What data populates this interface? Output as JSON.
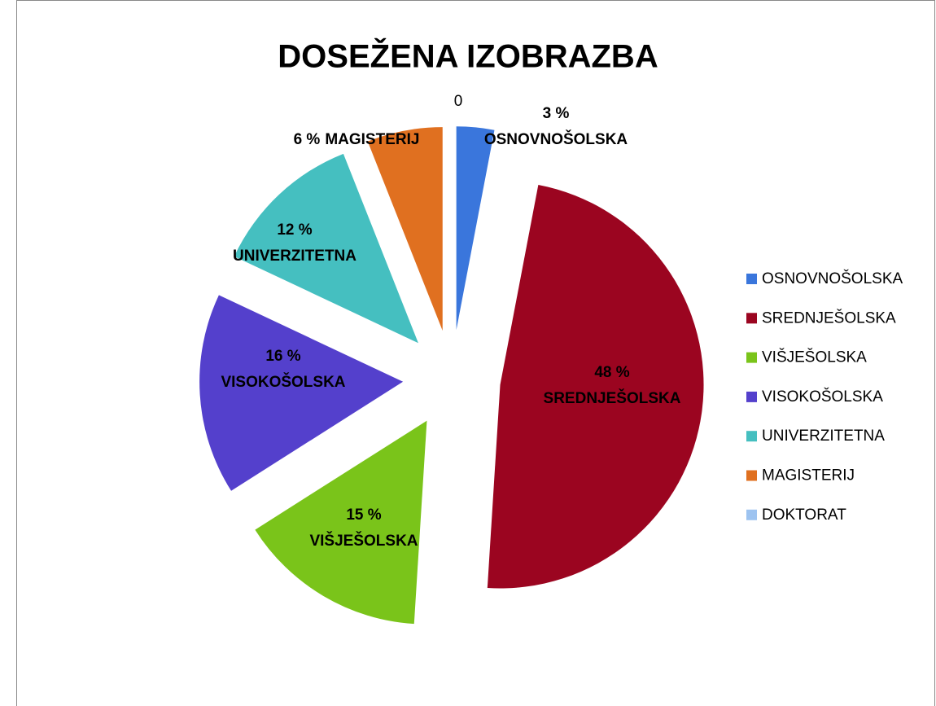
{
  "chart_data": {
    "type": "pie",
    "title": "DOSEŽENA IZOBRAZBA",
    "categories": [
      "OSNOVNOŠOLSKA",
      "SREDNJEŠOLSKA",
      "VIŠJEŠOLSKA",
      "VISOKOŠOLSKA",
      "UNIVERZITETNA",
      "MAGISTERIJ",
      "DOKTORAT"
    ],
    "values": [
      3,
      48,
      15,
      16,
      12,
      6,
      0
    ],
    "value_labels": [
      "3 %",
      "48 %",
      "15 %",
      "16 %",
      "12 %",
      "6 %",
      "0"
    ],
    "colors": [
      "#3a76dc",
      "#9b0520",
      "#7ac41a",
      "#5440cc",
      "#45bfc0",
      "#e07020",
      "#9dc3f0"
    ],
    "legend": "right"
  }
}
